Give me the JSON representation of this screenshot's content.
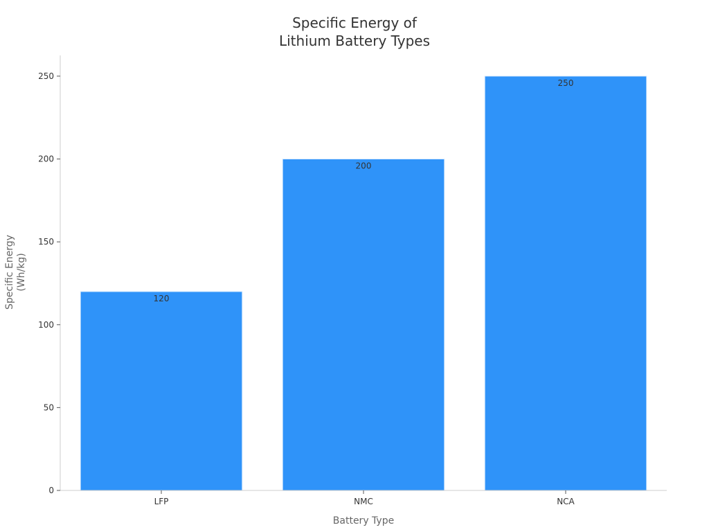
{
  "chart_data": {
    "type": "bar",
    "title": [
      "Specific Energy of",
      "Lithium Battery Types"
    ],
    "xlabel": "Battery Type",
    "ylabel": [
      "Specific Energy",
      "(Wh/kg)"
    ],
    "categories": [
      "LFP",
      "NMC",
      "NCA"
    ],
    "values": [
      120,
      200,
      250
    ],
    "data_labels": [
      "120",
      "200",
      "250"
    ],
    "ylim": [
      0,
      262.5
    ],
    "yticks": [
      0,
      50,
      100,
      150,
      200,
      250
    ],
    "ytick_labels": [
      "0",
      "50",
      "100",
      "150",
      "200",
      "250"
    ],
    "grid": false,
    "colors": {
      "bar": "#2f93f9",
      "bar_edge": "#d9ebfe",
      "axis": "#cccccc",
      "text": "#333333",
      "label": "#666666"
    }
  }
}
